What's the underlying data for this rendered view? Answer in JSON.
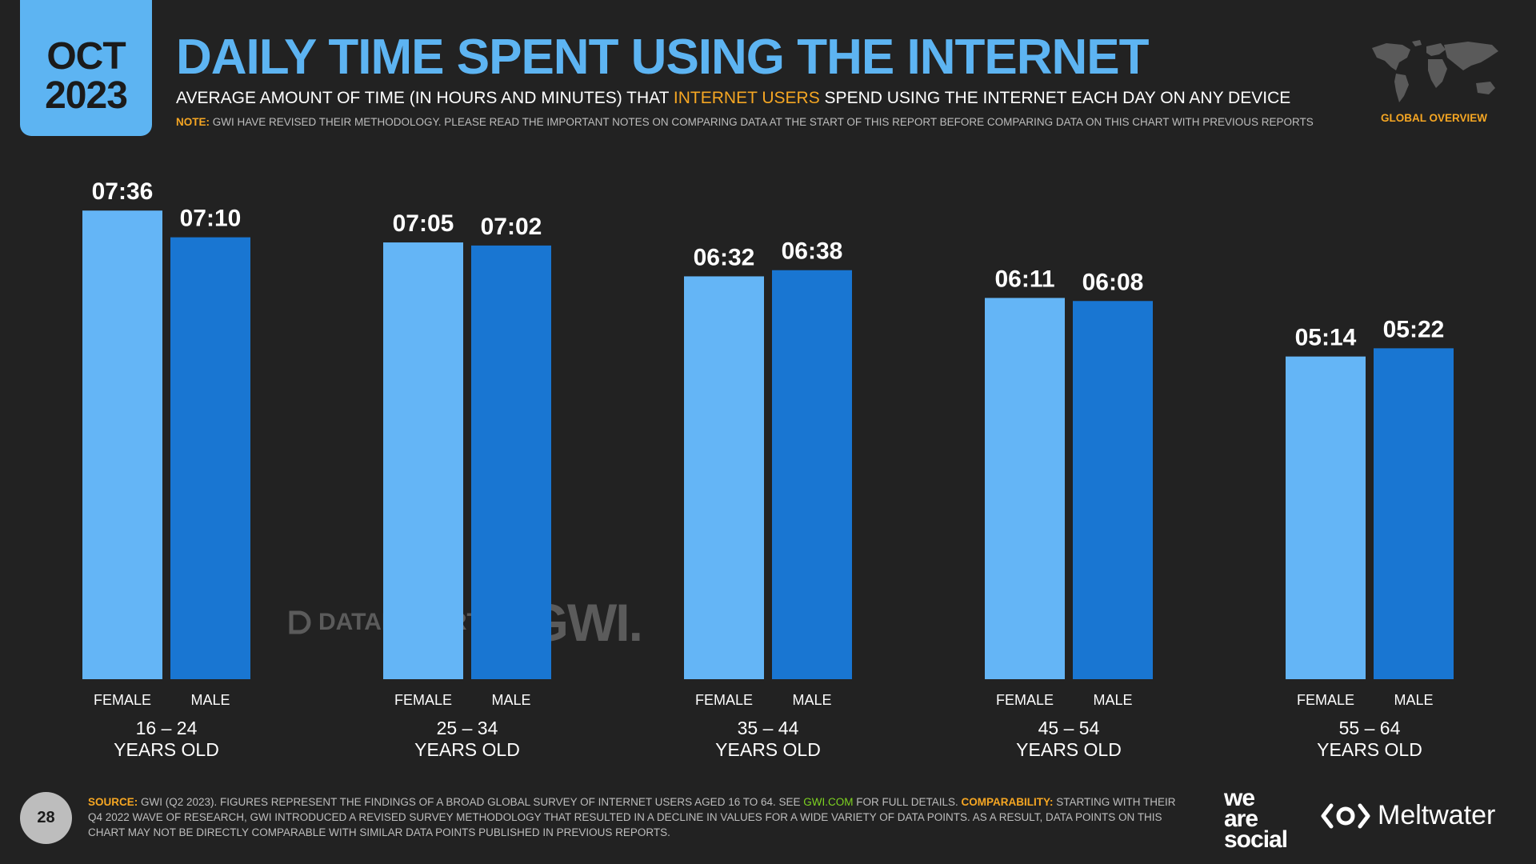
{
  "header": {
    "month": "OCT",
    "year": "2023",
    "title": "DAILY TIME SPENT USING THE INTERNET",
    "subtitle_pre": "AVERAGE AMOUNT OF TIME (IN HOURS AND MINUTES) THAT ",
    "subtitle_highlight": "INTERNET USERS",
    "subtitle_post": " SPEND USING THE INTERNET EACH DAY ON ANY DEVICE",
    "note_label": "NOTE:",
    "note_text": " GWI HAVE REVISED THEIR METHODOLOGY. PLEASE READ THE IMPORTANT NOTES ON COMPARING DATA AT THE START OF THIS REPORT BEFORE COMPARING DATA ON THIS CHART WITH PREVIOUS REPORTS",
    "region_label": "GLOBAL OVERVIEW",
    "map_icon": "world-map-icon"
  },
  "chart_data": {
    "type": "bar",
    "categories": [
      "16 – 24",
      "25 – 34",
      "35 – 44",
      "45 – 54",
      "55 – 64"
    ],
    "category_suffix": "YEARS OLD",
    "series": [
      {
        "name": "FEMALE",
        "color": "#64b5f6",
        "values": [
          "07:36",
          "07:05",
          "06:32",
          "06:11",
          "05:14"
        ]
      },
      {
        "name": "MALE",
        "color": "#1976d2",
        "values": [
          "07:10",
          "07:02",
          "06:38",
          "06:08",
          "05:22"
        ]
      }
    ],
    "value_format": "hh:mm",
    "grid": false,
    "legend": "none"
  },
  "watermark": {
    "datareportal": "DATAREPORTAL",
    "gwi": "GWI."
  },
  "footer": {
    "page_number": "28",
    "source_label": "SOURCE:",
    "source_text_1": " GWI (Q2 2023). FIGURES REPRESENT THE FINDINGS OF A BROAD GLOBAL SURVEY OF INTERNET USERS AGED 16 TO 64. SEE ",
    "source_link": "GWI.COM",
    "source_text_2": " FOR FULL DETAILS. ",
    "comparability_label": "COMPARABILITY:",
    "comparability_text": " STARTING WITH THEIR Q4 2022 WAVE OF RESEARCH, GWI INTRODUCED A REVISED SURVEY METHODOLOGY THAT RESULTED IN A DECLINE IN VALUES FOR A WIDE VARIETY OF DATA POINTS. AS A RESULT, DATA POINTS ON THIS CHART MAY NOT BE DIRECTLY COMPARABLE WITH SIMILAR DATA POINTS PUBLISHED IN PREVIOUS REPORTS.",
    "logo_we": "we",
    "logo_are": "are",
    "logo_social": "social",
    "meltwater": "Meltwater"
  }
}
